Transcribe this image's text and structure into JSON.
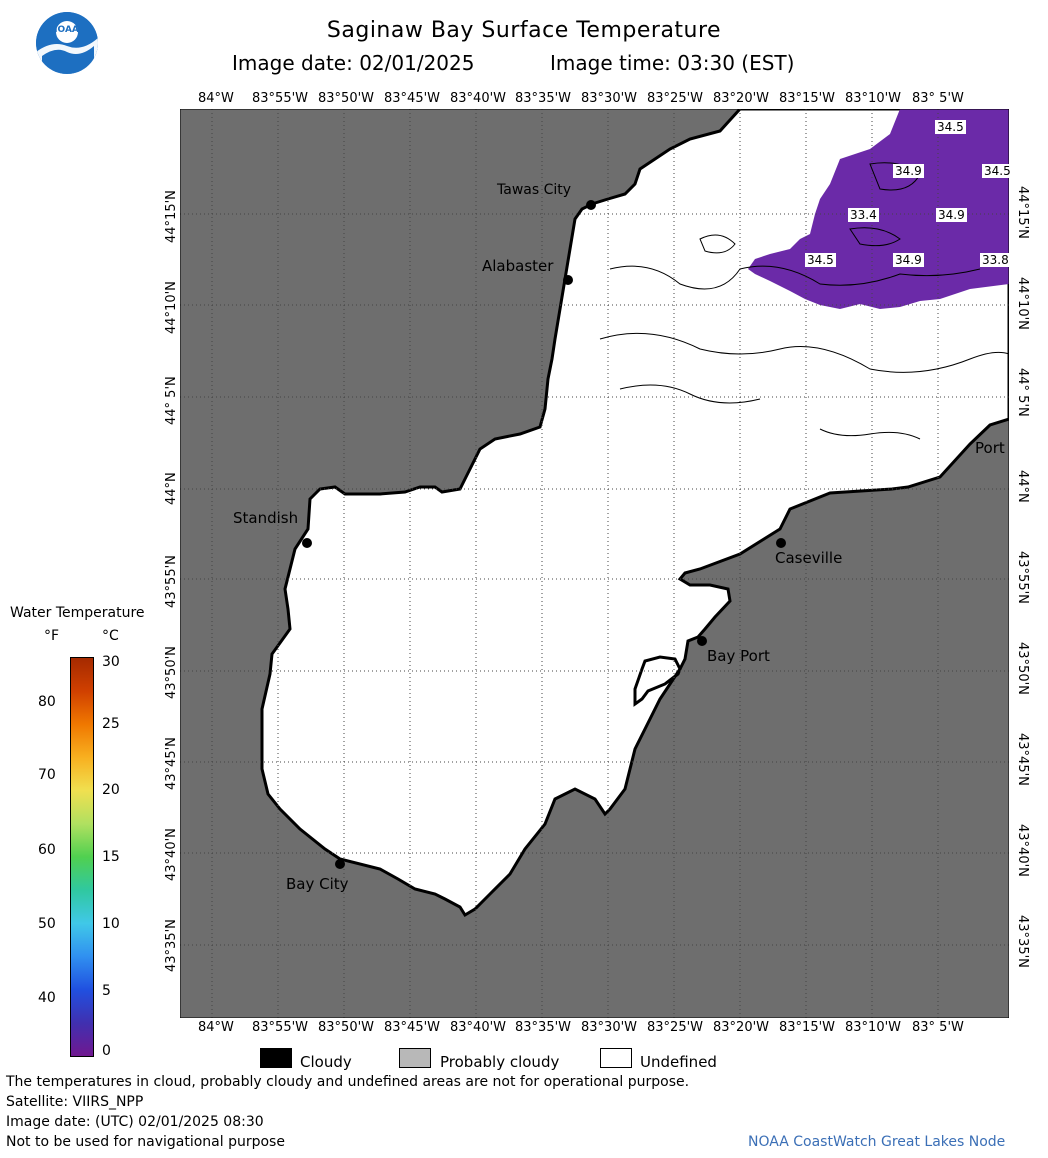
{
  "header": {
    "title": "Saginaw Bay Surface Temperature",
    "image_date_label": "Image date: 02/01/2025",
    "image_time_label": "Image time: 03:30 (EST)"
  },
  "logo": {
    "text": "NOAA",
    "icon": "noaa-logo-icon"
  },
  "axes": {
    "lon_ticks": [
      "84°W",
      "83°55'W",
      "83°50'W",
      "83°45'W",
      "83°40'W",
      "83°35'W",
      "83°30'W",
      "83°25'W",
      "83°20'W",
      "83°15'W",
      "83°10'W",
      "83° 5'W"
    ],
    "lat_ticks": [
      "44°15'N",
      "44°10'N",
      "44° 5'N",
      "44°N",
      "43°55'N",
      "43°50'N",
      "43°45'N",
      "43°40'N",
      "43°35'N"
    ]
  },
  "cities": {
    "tawas": "Tawas City",
    "alabaster": "Alabaster",
    "standish": "Standish",
    "caseville": "Caseville",
    "bay_port": "Bay Port",
    "bay_city": "Bay City",
    "port": "Port"
  },
  "contour_labels": [
    "34.5",
    "34.9",
    "34.5",
    "33.4",
    "34.9",
    "34.5",
    "34.9",
    "33.8"
  ],
  "colorbar": {
    "title": "Water Temperature",
    "unit_f": "°F",
    "unit_c": "°C",
    "f_ticks": [
      "80",
      "70",
      "60",
      "50",
      "40"
    ],
    "c_ticks": [
      "30",
      "25",
      "20",
      "15",
      "10",
      "5",
      "0"
    ],
    "colors": [
      "#a52a00",
      "#d04000",
      "#f07800",
      "#f8b020",
      "#f0e050",
      "#b0e060",
      "#50d050",
      "#30c8a0",
      "#40c8e8",
      "#3090f0",
      "#2050e0",
      "#4030b0",
      "#701890"
    ]
  },
  "legend": {
    "cloudy": "Cloudy",
    "probably_cloudy": "Probably cloudy",
    "undefined": "Undefined"
  },
  "colors": {
    "land": "#6e6e6e",
    "water": "#ffffff",
    "warm_water": "#6b2aa8",
    "cloudy": "#000000",
    "probably_cloudy": "#b8b8b8"
  },
  "footer": {
    "note": "The temperatures in cloud, probably cloudy and undefined areas are not for operational purpose.",
    "satellite": "Satellite: VIIRS_NPP",
    "image_date_utc": "Image date: (UTC) 02/01/2025  08:30",
    "nav_warning": "Not to be used for navigational purpose",
    "credit": "NOAA CoastWatch Great Lakes Node"
  }
}
